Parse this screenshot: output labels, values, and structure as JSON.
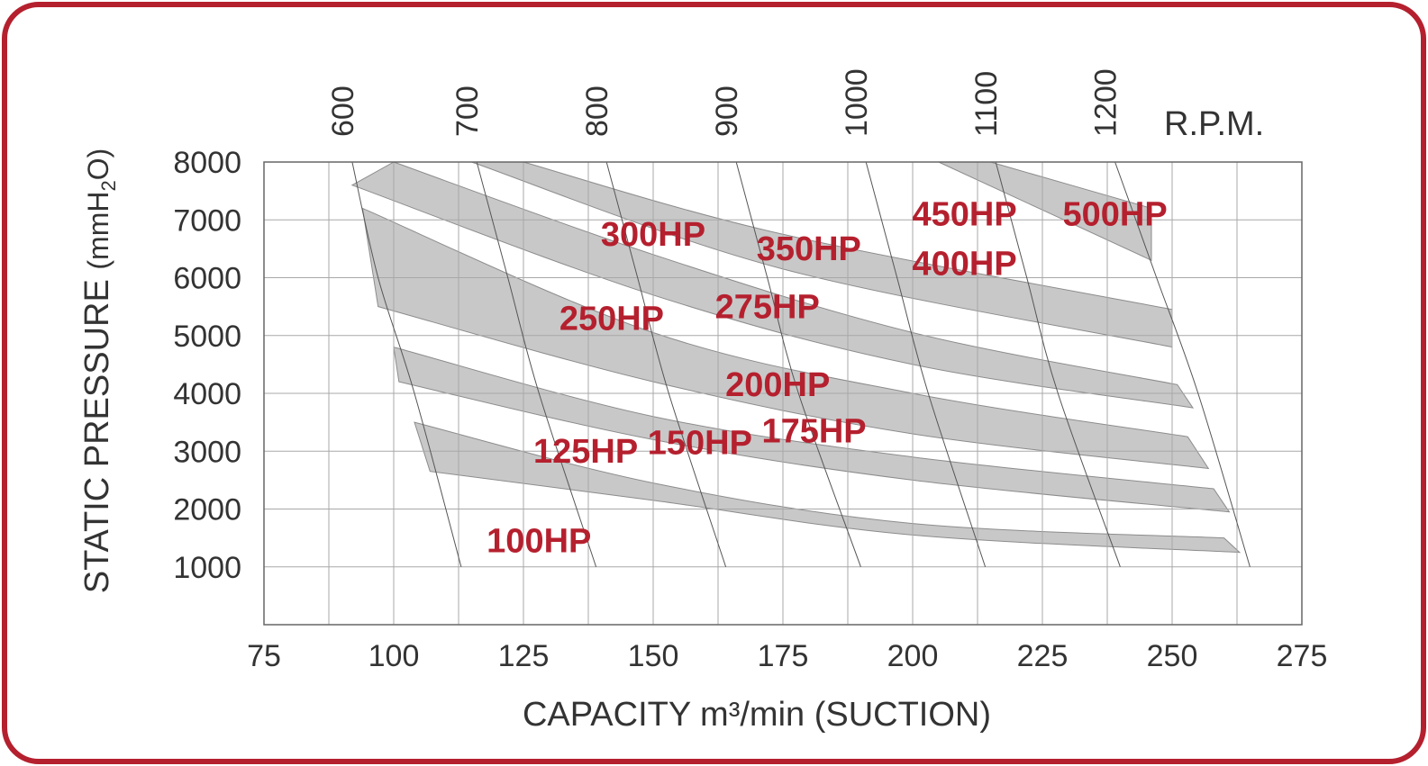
{
  "colors": {
    "frame": "#b5202e",
    "band": "#c8c8c8",
    "grid": "#a8a8a8",
    "text": "#333333",
    "hp_label": "#b5202e"
  },
  "chart_data": {
    "type": "area",
    "xlabel": "CAPACITY m³/min (SUCTION)",
    "ylabel_main": "STATIC PRESSURE",
    "ylabel_unit_pre": "(mmH",
    "ylabel_unit_sub": "2",
    "ylabel_unit_post": "O)",
    "xlim": [
      75,
      275
    ],
    "ylim": [
      0,
      8000
    ],
    "x_ticks": [
      "75",
      "100",
      "125",
      "150",
      "175",
      "200",
      "225",
      "250",
      "275"
    ],
    "y_ticks": [
      "1000",
      "2000",
      "3000",
      "4000",
      "5000",
      "6000",
      "7000",
      "8000"
    ],
    "rpm_title": "R.P.M.",
    "rpm_ticks": [
      "600",
      "700",
      "800",
      "900",
      "1000",
      "1100",
      "1200"
    ],
    "grid": true,
    "rpm_curves": [
      {
        "rpm": "600",
        "points": [
          [
            92,
            8000
          ],
          [
            97,
            6000
          ],
          [
            104,
            4000
          ],
          [
            113,
            1000
          ]
        ]
      },
      {
        "rpm": "700",
        "points": [
          [
            116,
            8000
          ],
          [
            122,
            6000
          ],
          [
            128,
            4000
          ],
          [
            139,
            1000
          ]
        ]
      },
      {
        "rpm": "800",
        "points": [
          [
            141,
            8000
          ],
          [
            147,
            6000
          ],
          [
            153,
            4000
          ],
          [
            164,
            1000
          ]
        ]
      },
      {
        "rpm": "900",
        "points": [
          [
            166,
            8000
          ],
          [
            172,
            6000
          ],
          [
            178,
            4000
          ],
          [
            190,
            1000
          ]
        ]
      },
      {
        "rpm": "1000",
        "points": [
          [
            191,
            8000
          ],
          [
            197,
            6000
          ],
          [
            203,
            4000
          ],
          [
            214,
            1000
          ]
        ]
      },
      {
        "rpm": "1100",
        "points": [
          [
            216,
            8000
          ],
          [
            222,
            6000
          ],
          [
            228,
            4000
          ],
          [
            240,
            1000
          ]
        ]
      },
      {
        "rpm": "1200",
        "points": [
          [
            239,
            8000
          ],
          [
            247,
            6000
          ],
          [
            255,
            4000
          ],
          [
            265,
            1000
          ]
        ]
      }
    ],
    "bands": [
      {
        "hp_range": "100HP-125HP",
        "upper": [
          [
            104,
            3500
          ],
          [
            150,
            2450
          ],
          [
            200,
            1750
          ],
          [
            260,
            1500
          ]
        ],
        "lower": [
          [
            107,
            2650
          ],
          [
            150,
            2150
          ],
          [
            200,
            1550
          ],
          [
            263,
            1250
          ]
        ]
      },
      {
        "hp_range": "150HP-175HP",
        "upper": [
          [
            100,
            4800
          ],
          [
            150,
            3600
          ],
          [
            200,
            2900
          ],
          [
            258,
            2350
          ]
        ],
        "lower": [
          [
            101,
            4200
          ],
          [
            150,
            3200
          ],
          [
            200,
            2500
          ],
          [
            261,
            1950
          ]
        ]
      },
      {
        "hp_range": "200HP-250HP",
        "upper": [
          [
            94,
            7200
          ],
          [
            150,
            5050
          ],
          [
            200,
            4000
          ],
          [
            253,
            3250
          ]
        ],
        "lower": [
          [
            97,
            5500
          ],
          [
            150,
            4200
          ],
          [
            200,
            3300
          ],
          [
            257,
            2700
          ]
        ]
      },
      {
        "hp_range": "275HP-300HP",
        "upper": [
          [
            100,
            8000
          ],
          [
            150,
            6400
          ],
          [
            200,
            5050
          ],
          [
            251,
            4150
          ]
        ],
        "lower": [
          [
            92,
            7600
          ],
          [
            150,
            5700
          ],
          [
            200,
            4500
          ],
          [
            254,
            3750
          ]
        ]
      },
      {
        "hp_range": "350HP-400HP",
        "upper": [
          [
            125,
            8000
          ],
          [
            175,
            6750
          ],
          [
            250,
            5450
          ]
        ],
        "lower": [
          [
            115,
            8000
          ],
          [
            175,
            6150
          ],
          [
            250,
            4800
          ]
        ]
      },
      {
        "hp_range": "450HP-500HP",
        "upper": [
          [
            215,
            8000
          ],
          [
            246,
            7200
          ]
        ],
        "lower": [
          [
            205,
            8000
          ],
          [
            246,
            6300
          ]
        ]
      }
    ],
    "hp_labels": [
      {
        "text": "100HP",
        "x": 128,
        "y": 1250
      },
      {
        "text": "125HP",
        "x": 137,
        "y": 2800
      },
      {
        "text": "150HP",
        "x": 159,
        "y": 2950
      },
      {
        "text": "175HP",
        "x": 181,
        "y": 3150
      },
      {
        "text": "200HP",
        "x": 174,
        "y": 3950
      },
      {
        "text": "250HP",
        "x": 142,
        "y": 5100
      },
      {
        "text": "275HP",
        "x": 172,
        "y": 5300
      },
      {
        "text": "300HP",
        "x": 150,
        "y": 6550
      },
      {
        "text": "350HP",
        "x": 180,
        "y": 6300
      },
      {
        "text": "400HP",
        "x": 210,
        "y": 6050
      },
      {
        "text": "450HP",
        "x": 210,
        "y": 6900
      },
      {
        "text": "500HP",
        "x": 239,
        "y": 6900
      }
    ]
  }
}
